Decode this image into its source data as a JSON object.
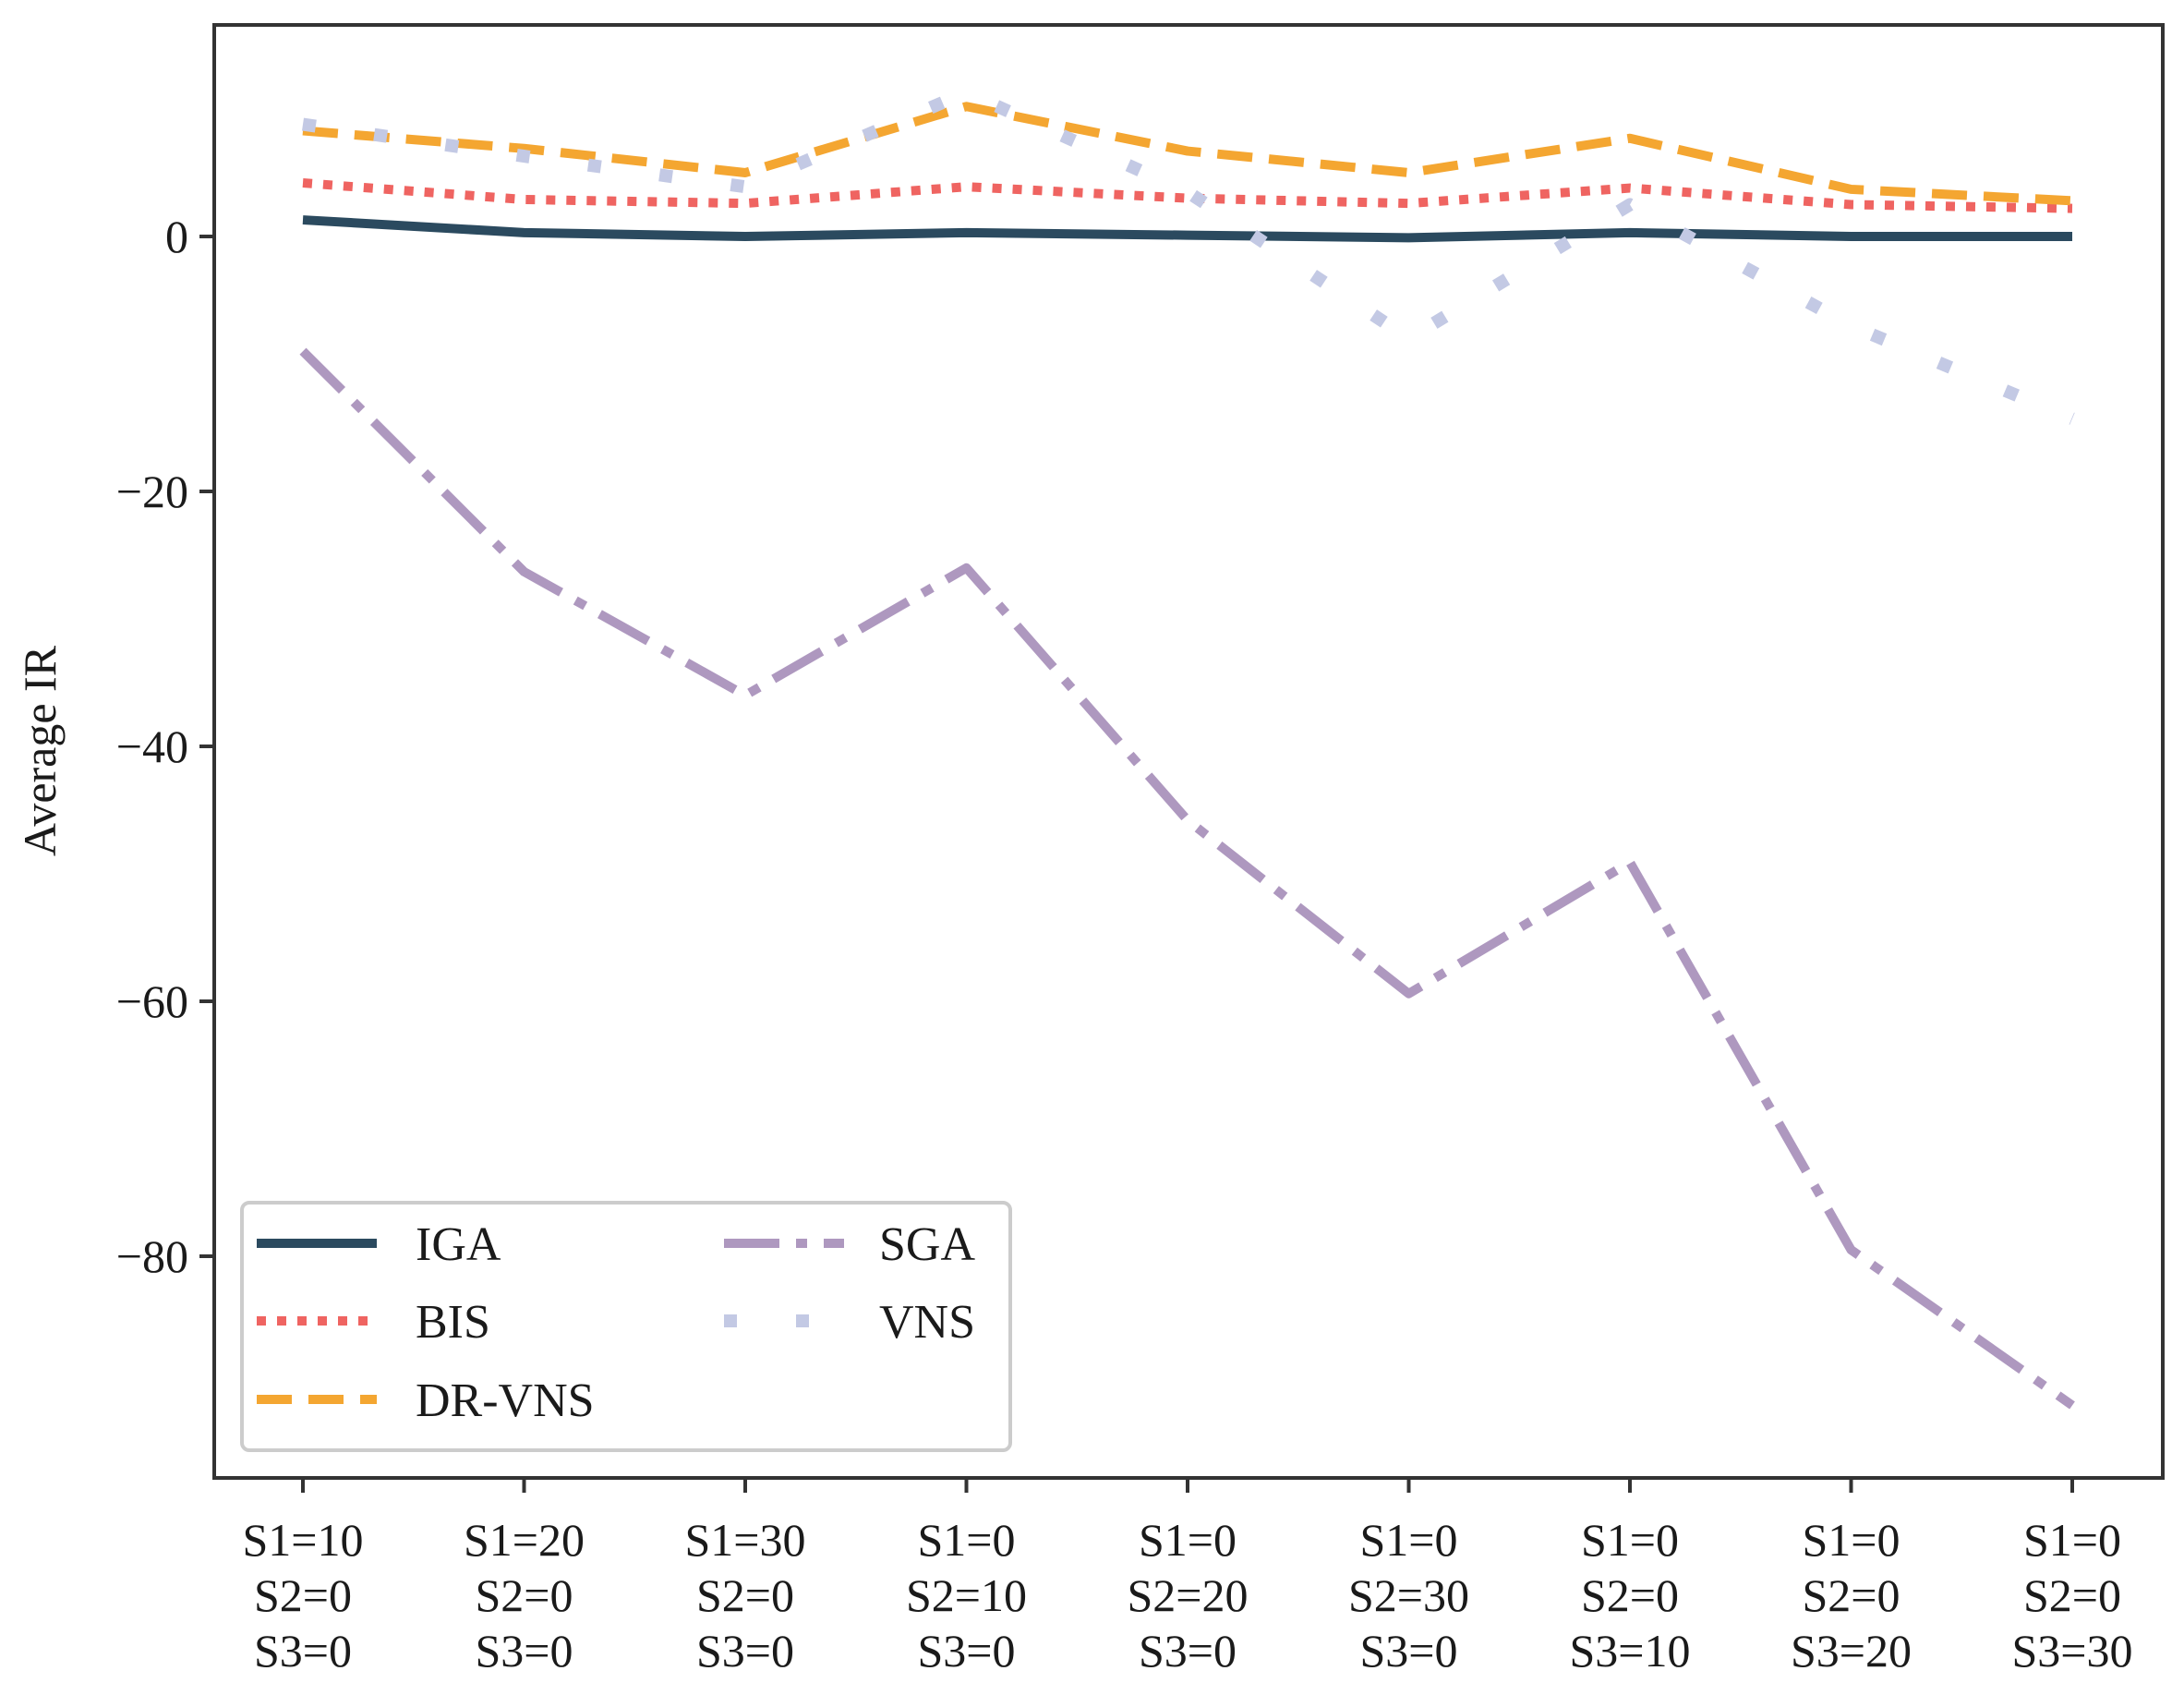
{
  "chart_data": {
    "type": "line",
    "title": "",
    "xlabel": "",
    "ylabel": "Average IR",
    "ylim": [
      -97,
      16.8
    ],
    "yticks": [
      0,
      -20,
      -40,
      -60,
      -80
    ],
    "ytick_labels": [
      "0",
      "−20",
      "−40",
      "−60",
      "−80"
    ],
    "legend_position": "lower-left",
    "categories": [
      [
        "S1=10",
        "S2=0",
        "S3=0"
      ],
      [
        "S1=20",
        "S2=0",
        "S3=0"
      ],
      [
        "S1=30",
        "S2=0",
        "S3=0"
      ],
      [
        "S1=0",
        "S2=10",
        "S3=0"
      ],
      [
        "S1=0",
        "S2=20",
        "S3=0"
      ],
      [
        "S1=0",
        "S2=30",
        "S3=0"
      ],
      [
        "S1=0",
        "S2=0",
        "S3=10"
      ],
      [
        "S1=0",
        "S2=0",
        "S3=20"
      ],
      [
        "S1=0",
        "S2=0",
        "S3=30"
      ]
    ],
    "series": [
      {
        "name": "IGA",
        "color": "#2b4a5f",
        "style": "solid",
        "values": [
          1.3,
          0.3,
          0.0,
          0.3,
          0.1,
          -0.1,
          0.3,
          0.0,
          0.0
        ]
      },
      {
        "name": "BIS",
        "color": "#ef6461",
        "style": "dotted",
        "values": [
          4.2,
          2.9,
          2.6,
          3.9,
          3.0,
          2.6,
          3.8,
          2.5,
          2.2
        ]
      },
      {
        "name": "DR-VNS",
        "color": "#f4a631",
        "style": "dashed",
        "values": [
          8.3,
          6.9,
          5.0,
          10.2,
          6.7,
          5.0,
          7.7,
          3.7,
          2.8
        ]
      },
      {
        "name": "SGA",
        "color": "#ae98bf",
        "style": "dashdot",
        "values": [
          -9.0,
          -26.3,
          -36.0,
          -26.0,
          -45.8,
          -59.4,
          -49.1,
          -79.5,
          -91.7
        ]
      },
      {
        "name": "VNS",
        "color": "#c3c9e4",
        "style": "sparsedot",
        "values": [
          8.8,
          6.3,
          3.9,
          11.3,
          3.5,
          -8.0,
          2.5,
          -7.0,
          -14.3
        ]
      }
    ],
    "legend": {
      "columns": [
        [
          "IGA",
          "BIS",
          "DR-VNS"
        ],
        [
          "SGA",
          "VNS"
        ]
      ]
    }
  }
}
